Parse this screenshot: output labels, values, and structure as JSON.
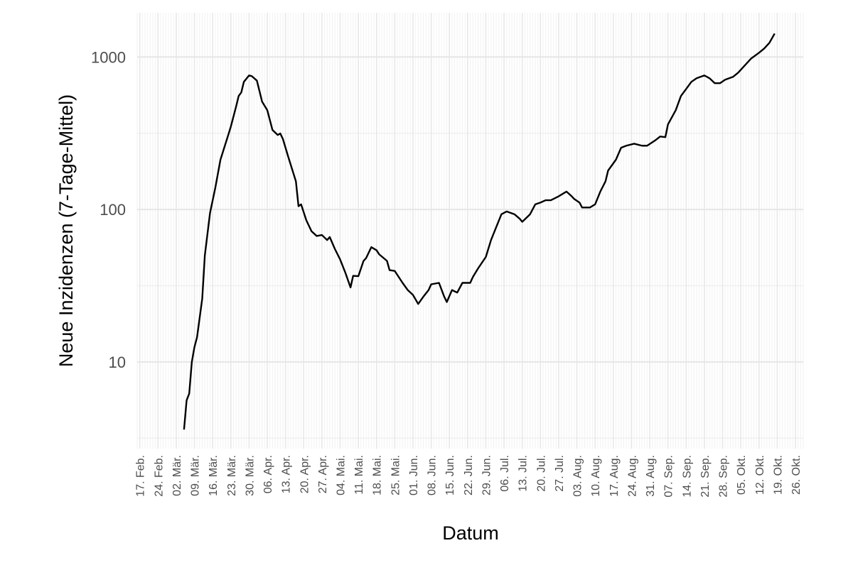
{
  "chart_data": {
    "type": "line",
    "xlabel": "Datum",
    "ylabel": "Neue Inzidenzen (7-Tage-Mittel)",
    "x": [
      "03-05",
      "03-06",
      "03-07",
      "03-08",
      "03-09",
      "03-10",
      "03-12",
      "03-13",
      "03-15",
      "03-17",
      "03-19",
      "03-22",
      "03-23",
      "03-25",
      "03-26",
      "03-27",
      "03-28",
      "03-30",
      "03-31",
      "04-02",
      "04-03",
      "04-04",
      "04-06",
      "04-08",
      "04-10",
      "04-11",
      "04-12",
      "04-14",
      "04-17",
      "04-18",
      "04-19",
      "04-21",
      "04-23",
      "04-25",
      "04-27",
      "04-29",
      "04-30",
      "05-02",
      "05-04",
      "05-06",
      "05-08",
      "05-09",
      "05-11",
      "05-13",
      "05-14",
      "05-16",
      "05-18",
      "05-19",
      "05-22",
      "05-23",
      "05-25",
      "05-28",
      "05-30",
      "06-01",
      "06-03",
      "06-05",
      "06-07",
      "06-08",
      "06-11",
      "06-13",
      "06-14",
      "06-16",
      "06-18",
      "06-20",
      "06-23",
      "06-24",
      "06-26",
      "06-29",
      "07-01",
      "07-03",
      "07-05",
      "07-07",
      "07-10",
      "07-12",
      "07-13",
      "07-16",
      "07-18",
      "07-20",
      "07-22",
      "07-24",
      "07-27",
      "07-29",
      "07-30",
      "08-01",
      "08-02",
      "08-04",
      "08-05",
      "08-08",
      "08-10",
      "08-12",
      "08-14",
      "08-15",
      "08-18",
      "08-20",
      "08-22",
      "08-25",
      "08-28",
      "08-30",
      "09-02",
      "09-04",
      "09-06",
      "09-07",
      "09-10",
      "09-12",
      "09-14",
      "09-16",
      "09-18",
      "09-21",
      "09-23",
      "09-25",
      "09-27",
      "09-29",
      "10-02",
      "10-04",
      "10-07",
      "10-09",
      "10-12",
      "10-14",
      "10-16",
      "10-18"
    ],
    "series": [
      {
        "name": "Neue Inzidenzen",
        "color": "#000000",
        "values": [
          3.6,
          5.6,
          6.2,
          10,
          12.5,
          14.5,
          26,
          50,
          95,
          138,
          212,
          308,
          350,
          472,
          555,
          585,
          687,
          757,
          750,
          700,
          598,
          510,
          448,
          332,
          308,
          315,
          290,
          223,
          153,
          105,
          108,
          85,
          72,
          67,
          68,
          63,
          66,
          55,
          47,
          38.5,
          30.8,
          36.7,
          36.5,
          46,
          48,
          56.6,
          54,
          50.8,
          46,
          40,
          39.5,
          33,
          29.6,
          27.5,
          24,
          26.8,
          29.6,
          32.3,
          33,
          26.8,
          24.7,
          29.6,
          28.5,
          33,
          33,
          36,
          41,
          48.8,
          63,
          76.6,
          93,
          97,
          93,
          87,
          83,
          93,
          108,
          111,
          115,
          115,
          122,
          128,
          131,
          122,
          117,
          111,
          103,
          103,
          108,
          131,
          153,
          180,
          212,
          254,
          262,
          270,
          262,
          262,
          283,
          301,
          298,
          361,
          448,
          555,
          617,
          687,
          725,
          757,
          725,
          673,
          673,
          710,
          741,
          790,
          898,
          978,
          1066,
          1137,
          1239,
          1424
        ]
      }
    ],
    "xlim": [
      "02-16",
      "10-29"
    ],
    "xticks": [
      {
        "value": "02-17",
        "label": "17. Feb."
      },
      {
        "value": "02-24",
        "label": "24. Feb."
      },
      {
        "value": "03-02",
        "label": "02. Mär."
      },
      {
        "value": "03-09",
        "label": "09. Mär."
      },
      {
        "value": "03-16",
        "label": "16. Mär."
      },
      {
        "value": "03-23",
        "label": "23. Mär."
      },
      {
        "value": "03-30",
        "label": "30. Mär."
      },
      {
        "value": "04-06",
        "label": "06. Apr."
      },
      {
        "value": "04-13",
        "label": "13. Apr."
      },
      {
        "value": "04-20",
        "label": "20. Apr."
      },
      {
        "value": "04-27",
        "label": "27. Apr."
      },
      {
        "value": "05-04",
        "label": "04. Mai."
      },
      {
        "value": "05-11",
        "label": "11. Mai."
      },
      {
        "value": "05-18",
        "label": "18. Mai."
      },
      {
        "value": "05-25",
        "label": "25. Mai."
      },
      {
        "value": "06-01",
        "label": "01. Jun."
      },
      {
        "value": "06-08",
        "label": "08. Jun."
      },
      {
        "value": "06-15",
        "label": "15. Jun."
      },
      {
        "value": "06-22",
        "label": "22. Jun."
      },
      {
        "value": "06-29",
        "label": "29. Jun."
      },
      {
        "value": "07-06",
        "label": "06. Jul."
      },
      {
        "value": "07-13",
        "label": "13. Jul."
      },
      {
        "value": "07-20",
        "label": "20. Jul."
      },
      {
        "value": "07-27",
        "label": "27. Jul."
      },
      {
        "value": "08-03",
        "label": "03. Aug."
      },
      {
        "value": "08-10",
        "label": "10. Aug."
      },
      {
        "value": "08-17",
        "label": "17. Aug."
      },
      {
        "value": "08-24",
        "label": "24. Aug."
      },
      {
        "value": "08-31",
        "label": "31. Aug."
      },
      {
        "value": "09-07",
        "label": "07. Sep."
      },
      {
        "value": "09-14",
        "label": "14. Sep."
      },
      {
        "value": "09-21",
        "label": "21. Sep."
      },
      {
        "value": "09-28",
        "label": "28. Sep."
      },
      {
        "value": "10-05",
        "label": "05. Okt."
      },
      {
        "value": "10-12",
        "label": "12. Okt."
      },
      {
        "value": "10-19",
        "label": "19. Okt."
      },
      {
        "value": "10-26",
        "label": "26. Okt."
      }
    ],
    "ylim": [
      2.7,
      1950
    ],
    "yticks": [
      10,
      100,
      1000
    ],
    "ylog": true,
    "grid": true
  }
}
